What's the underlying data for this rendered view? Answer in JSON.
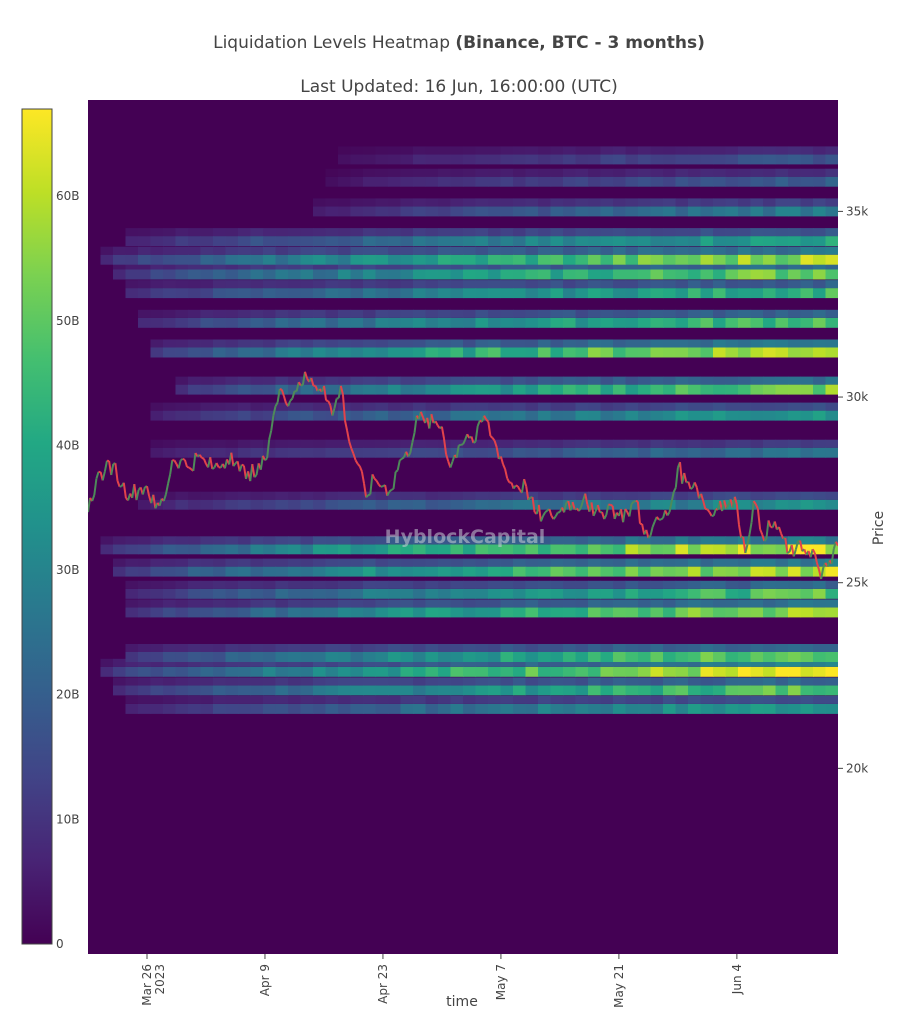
{
  "title": {
    "main": "Liquidation Levels Heatmap",
    "bold": "(Binance, BTC - 3 months)"
  },
  "subtitle": "Last Updated: 16 Jun, 16:00:00 (UTC)",
  "watermark": "HyblockCapital",
  "colors": {
    "scale": [
      "#440154",
      "#482475",
      "#414487",
      "#355f8d",
      "#2a788e",
      "#21918c",
      "#22a884",
      "#44bf70",
      "#7ad151",
      "#bddf26",
      "#fde725"
    ],
    "price_up": "#4e8a5a",
    "price_down": "#e2434b"
  },
  "chart_data": {
    "type": "heatmap",
    "xlabel": "time",
    "ylabel": "Price",
    "x_ticks": [
      "Mar 26",
      "Apr 9",
      "Apr 23",
      "May 7",
      "May 21",
      "Jun 4"
    ],
    "x_tick_sub": "2023",
    "y_ticks": [
      "20k",
      "25k",
      "30k",
      "35k"
    ],
    "colorbar_ticks": [
      "0",
      "10B",
      "20B",
      "30B",
      "40B",
      "50B",
      "60B"
    ],
    "colorbar_range": [
      0,
      67
    ],
    "y_range": [
      15000,
      38000
    ],
    "x_range": [
      "2023-03-19",
      "2023-06-16"
    ],
    "bands": [
      {
        "price": 21600,
        "start": "2023-03-22",
        "peak": 38
      },
      {
        "price": 22100,
        "start": "2023-03-21",
        "peak": 52
      },
      {
        "price": 22600,
        "start": "2023-03-20",
        "peak": 66
      },
      {
        "price": 23000,
        "start": "2023-03-22",
        "peak": 55
      },
      {
        "price": 24200,
        "start": "2023-03-23",
        "peak": 58
      },
      {
        "price": 24700,
        "start": "2023-03-23",
        "peak": 50
      },
      {
        "price": 25300,
        "start": "2023-03-21",
        "peak": 62
      },
      {
        "price": 25900,
        "start": "2023-03-20",
        "peak": 65
      },
      {
        "price": 27100,
        "start": "2023-03-24",
        "peak": 34
      },
      {
        "price": 28500,
        "start": "2023-03-25",
        "peak": 26
      },
      {
        "price": 29500,
        "start": "2023-03-26",
        "peak": 38
      },
      {
        "price": 30200,
        "start": "2023-03-28",
        "peak": 54
      },
      {
        "price": 31200,
        "start": "2023-03-25",
        "peak": 64
      },
      {
        "price": 32000,
        "start": "2023-03-24",
        "peak": 50
      },
      {
        "price": 32800,
        "start": "2023-03-22",
        "peak": 46
      },
      {
        "price": 33300,
        "start": "2023-03-21",
        "peak": 55
      },
      {
        "price": 33700,
        "start": "2023-03-20",
        "peak": 60
      },
      {
        "price": 34200,
        "start": "2023-03-22",
        "peak": 40
      },
      {
        "price": 35000,
        "start": "2023-04-14",
        "peak": 30
      },
      {
        "price": 35800,
        "start": "2023-04-16",
        "peak": 20
      },
      {
        "price": 36400,
        "start": "2023-04-17",
        "peak": 18
      }
    ],
    "price_path": [
      [
        "2023-03-19",
        26900
      ],
      [
        "2023-03-20",
        27800
      ],
      [
        "2023-03-21",
        28000
      ],
      [
        "2023-03-22",
        28200
      ],
      [
        "2023-03-23",
        27600
      ],
      [
        "2023-03-24",
        27400
      ],
      [
        "2023-03-25",
        27500
      ],
      [
        "2023-03-26",
        27600
      ],
      [
        "2023-03-27",
        27000
      ],
      [
        "2023-03-28",
        27200
      ],
      [
        "2023-03-29",
        28300
      ],
      [
        "2023-03-30",
        28300
      ],
      [
        "2023-03-31",
        28100
      ],
      [
        "2023-04-01",
        28400
      ],
      [
        "2023-04-02",
        28200
      ],
      [
        "2023-04-03",
        28100
      ],
      [
        "2023-04-04",
        28200
      ],
      [
        "2023-04-05",
        28500
      ],
      [
        "2023-04-06",
        28000
      ],
      [
        "2023-04-07",
        28000
      ],
      [
        "2023-04-08",
        27900
      ],
      [
        "2023-04-09",
        28300
      ],
      [
        "2023-04-10",
        29500
      ],
      [
        "2023-04-11",
        30200
      ],
      [
        "2023-04-12",
        29900
      ],
      [
        "2023-04-13",
        30400
      ],
      [
        "2023-04-14",
        30500
      ],
      [
        "2023-04-15",
        30300
      ],
      [
        "2023-04-16",
        30300
      ],
      [
        "2023-04-17",
        29500
      ],
      [
        "2023-04-18",
        30300
      ],
      [
        "2023-04-19",
        28800
      ],
      [
        "2023-04-20",
        28200
      ],
      [
        "2023-04-21",
        27300
      ],
      [
        "2023-04-22",
        27800
      ],
      [
        "2023-04-23",
        27600
      ],
      [
        "2023-04-24",
        27500
      ],
      [
        "2023-04-25",
        28300
      ],
      [
        "2023-04-26",
        28400
      ],
      [
        "2023-04-27",
        29500
      ],
      [
        "2023-04-28",
        29300
      ],
      [
        "2023-04-29",
        29300
      ],
      [
        "2023-04-30",
        29200
      ],
      [
        "2023-05-01",
        28100
      ],
      [
        "2023-05-02",
        28700
      ],
      [
        "2023-05-03",
        29000
      ],
      [
        "2023-05-04",
        28800
      ],
      [
        "2023-05-05",
        29500
      ],
      [
        "2023-05-06",
        28900
      ],
      [
        "2023-05-07",
        28400
      ],
      [
        "2023-05-08",
        27700
      ],
      [
        "2023-05-09",
        27600
      ],
      [
        "2023-05-10",
        27600
      ],
      [
        "2023-05-11",
        26900
      ],
      [
        "2023-05-12",
        26800
      ],
      [
        "2023-05-13",
        26800
      ],
      [
        "2023-05-14",
        26900
      ],
      [
        "2023-05-15",
        27200
      ],
      [
        "2023-05-16",
        27000
      ],
      [
        "2023-05-17",
        27400
      ],
      [
        "2023-05-18",
        26800
      ],
      [
        "2023-05-19",
        26900
      ],
      [
        "2023-05-20",
        27100
      ],
      [
        "2023-05-21",
        26800
      ],
      [
        "2023-05-22",
        26900
      ],
      [
        "2023-05-23",
        27200
      ],
      [
        "2023-05-24",
        26300
      ],
      [
        "2023-05-25",
        26500
      ],
      [
        "2023-05-26",
        26700
      ],
      [
        "2023-05-27",
        26900
      ],
      [
        "2023-05-28",
        28100
      ],
      [
        "2023-05-29",
        27700
      ],
      [
        "2023-05-30",
        27700
      ],
      [
        "2023-05-31",
        27200
      ],
      [
        "2023-06-01",
        26800
      ],
      [
        "2023-06-02",
        27200
      ],
      [
        "2023-06-03",
        27100
      ],
      [
        "2023-06-04",
        27100
      ],
      [
        "2023-06-05",
        25800
      ],
      [
        "2023-06-06",
        27200
      ],
      [
        "2023-06-07",
        26300
      ],
      [
        "2023-06-08",
        26500
      ],
      [
        "2023-06-09",
        26500
      ],
      [
        "2023-06-10",
        25800
      ],
      [
        "2023-06-11",
        25900
      ],
      [
        "2023-06-12",
        25900
      ],
      [
        "2023-06-13",
        25900
      ],
      [
        "2023-06-14",
        25100
      ],
      [
        "2023-06-15",
        25600
      ],
      [
        "2023-06-16",
        26000
      ]
    ]
  }
}
